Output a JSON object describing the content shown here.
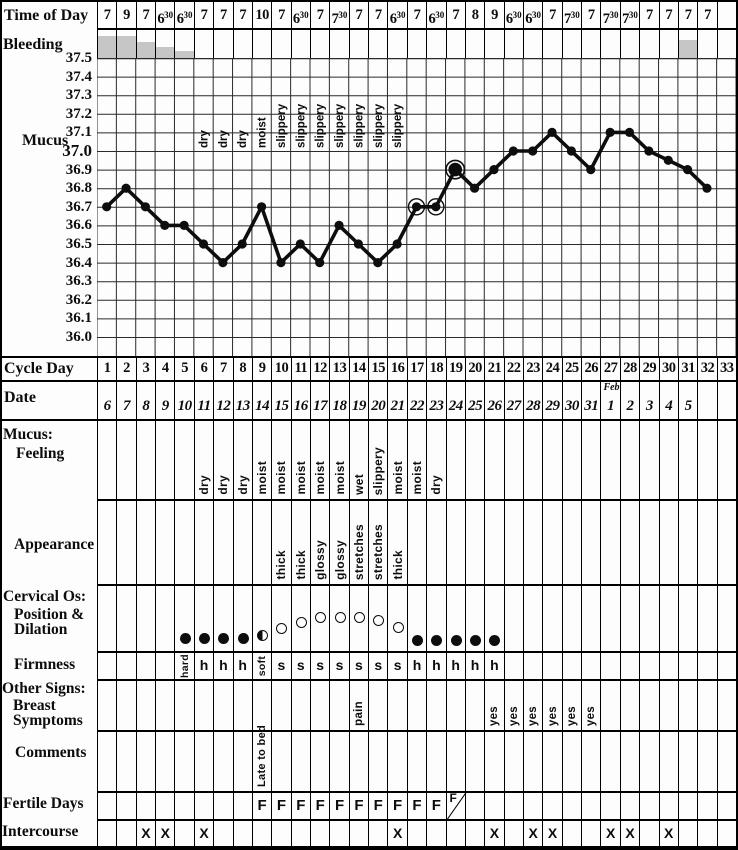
{
  "labels": {
    "time_of_day": "Time of Day",
    "bleeding": "Bleeding",
    "mucus_chart": "Mucus",
    "cycle_day": "Cycle Day",
    "date": "Date",
    "mucus_section": "Mucus:",
    "feeling": "Feeling",
    "appearance": "Appearance",
    "cervical_os": "Cervical Os:",
    "position_amp": "Position &",
    "dilation": "Dilation",
    "firmness": "Firmness",
    "other_signs": "Other Signs:",
    "breast": "Breast",
    "symptoms": "Symptoms",
    "comments": "Comments",
    "fertile_days": "Fertile Days",
    "intercourse": "Intercourse"
  },
  "columns": 33,
  "time_of_day": {
    "values": [
      "7",
      "9",
      "7",
      "6|30",
      "6|30",
      "7",
      "7",
      "7",
      "10",
      "7",
      "6|30",
      "7",
      "7|30",
      "7",
      "7",
      "6|30",
      "7",
      "6|30",
      "7",
      "8",
      "9",
      "6|30",
      "6|30",
      "7",
      "7|30",
      "7",
      "7|30",
      "7|30",
      "7",
      "7",
      "7",
      "7",
      ""
    ]
  },
  "bleeding": {
    "color": "#c6c6c6",
    "bars": [
      {
        "col": 1,
        "h": 22
      },
      {
        "col": 2,
        "h": 22
      },
      {
        "col": 3,
        "h": 16
      },
      {
        "col": 4,
        "h": 11
      },
      {
        "col": 5,
        "h": 7
      },
      {
        "col": 31,
        "h": 18
      }
    ]
  },
  "chart_data": {
    "type": "line",
    "x_label": "Cycle Day",
    "y_axis": {
      "min": 36.0,
      "max": 37.5,
      "step": 0.1,
      "bold_tick": "37.0"
    },
    "y_ticks": [
      "37.5",
      "37.4",
      "37.3",
      "37.2",
      "37.1",
      "37.0",
      "36.9",
      "36.8",
      "36.7",
      "36.6",
      "36.5",
      "36.4",
      "36.3",
      "36.2",
      "36.1",
      "36.0"
    ],
    "x": [
      1,
      2,
      3,
      4,
      5,
      6,
      7,
      8,
      9,
      10,
      11,
      12,
      13,
      14,
      15,
      16,
      17,
      18,
      19,
      20,
      21,
      22,
      23,
      24,
      25,
      26,
      27,
      28,
      29,
      30,
      31,
      32
    ],
    "temperatures": [
      36.7,
      36.8,
      36.7,
      36.6,
      36.6,
      36.5,
      36.4,
      36.5,
      36.7,
      36.4,
      36.5,
      36.4,
      36.6,
      36.5,
      36.4,
      36.5,
      36.7,
      36.7,
      36.9,
      36.8,
      36.9,
      37.0,
      37.0,
      37.1,
      37.0,
      36.9,
      37.1,
      37.1,
      37.0,
      36.95,
      36.9,
      36.8
    ],
    "circled_days": [
      17,
      18
    ],
    "peak_day": 19,
    "mucus_annotations": [
      {
        "day": 6,
        "text": "dry"
      },
      {
        "day": 7,
        "text": "dry"
      },
      {
        "day": 8,
        "text": "dry"
      },
      {
        "day": 9,
        "text": "moist"
      },
      {
        "day": 10,
        "text": "slippery"
      },
      {
        "day": 11,
        "text": "slippery"
      },
      {
        "day": 12,
        "text": "slippery"
      },
      {
        "day": 13,
        "text": "slippery"
      },
      {
        "day": 14,
        "text": "slippery"
      },
      {
        "day": 15,
        "text": "slippery"
      },
      {
        "day": 16,
        "text": "slippery"
      }
    ]
  },
  "cycle_day": {
    "values": [
      "1",
      "2",
      "3",
      "4",
      "5",
      "6",
      "7",
      "8",
      "9",
      "10",
      "11",
      "12",
      "13",
      "14",
      "15",
      "16",
      "17",
      "18",
      "19",
      "20",
      "21",
      "22",
      "23",
      "24",
      "25",
      "26",
      "27",
      "28",
      "29",
      "30",
      "31",
      "32",
      "33"
    ]
  },
  "date": {
    "values": [
      "6",
      "7",
      "8",
      "9",
      "10",
      "11",
      "12",
      "13",
      "14",
      "15",
      "16",
      "17",
      "18",
      "19",
      "20",
      "21",
      "22",
      "23",
      "24",
      "25",
      "26",
      "27",
      "28",
      "29",
      "30",
      "31",
      "1",
      "2",
      "3",
      "4",
      "5",
      "",
      ""
    ],
    "month_marker": {
      "col": 27,
      "text": "Feb"
    }
  },
  "feeling": {
    "entries": [
      {
        "col": 6,
        "text": "dry"
      },
      {
        "col": 7,
        "text": "dry"
      },
      {
        "col": 8,
        "text": "dry"
      },
      {
        "col": 9,
        "text": "moist"
      },
      {
        "col": 10,
        "text": "moist"
      },
      {
        "col": 11,
        "text": "moist"
      },
      {
        "col": 12,
        "text": "moist"
      },
      {
        "col": 13,
        "text": "moist"
      },
      {
        "col": 14,
        "text": "wet"
      },
      {
        "col": 15,
        "text": "slippery"
      },
      {
        "col": 16,
        "text": "moist"
      },
      {
        "col": 17,
        "text": "moist"
      },
      {
        "col": 18,
        "text": "dry"
      }
    ]
  },
  "appearance": {
    "entries": [
      {
        "col": 10,
        "text": "thick"
      },
      {
        "col": 11,
        "text": "thick"
      },
      {
        "col": 12,
        "text": "glossy"
      },
      {
        "col": 13,
        "text": "glossy"
      },
      {
        "col": 14,
        "text": "stretches"
      },
      {
        "col": 15,
        "text": "stretches"
      },
      {
        "col": 16,
        "text": "thick"
      }
    ]
  },
  "cervical_os": {
    "marks": [
      {
        "col": 5,
        "type": "filled",
        "dy": 53
      },
      {
        "col": 6,
        "type": "filled",
        "dy": 53
      },
      {
        "col": 7,
        "type": "filled",
        "dy": 53
      },
      {
        "col": 8,
        "type": "filled",
        "dy": 53
      },
      {
        "col": 9,
        "type": "half",
        "dy": 50
      },
      {
        "col": 10,
        "type": "open",
        "dy": 43
      },
      {
        "col": 11,
        "type": "open",
        "dy": 37
      },
      {
        "col": 12,
        "type": "open",
        "dy": 32
      },
      {
        "col": 13,
        "type": "open",
        "dy": 32
      },
      {
        "col": 14,
        "type": "open",
        "dy": 32
      },
      {
        "col": 15,
        "type": "open",
        "dy": 35
      },
      {
        "col": 16,
        "type": "open",
        "dy": 42
      },
      {
        "col": 17,
        "type": "filled",
        "dy": 55
      },
      {
        "col": 18,
        "type": "filled",
        "dy": 55
      },
      {
        "col": 19,
        "type": "filled",
        "dy": 55
      },
      {
        "col": 20,
        "type": "filled",
        "dy": 55
      },
      {
        "col": 21,
        "type": "filled",
        "dy": 55
      }
    ]
  },
  "firmness": {
    "entries": [
      {
        "col": 5,
        "text": "hard",
        "vertical": true
      },
      {
        "col": 6,
        "text": "h"
      },
      {
        "col": 7,
        "text": "h"
      },
      {
        "col": 8,
        "text": "h"
      },
      {
        "col": 9,
        "text": "soft",
        "vertical": true
      },
      {
        "col": 10,
        "text": "s"
      },
      {
        "col": 11,
        "text": "s"
      },
      {
        "col": 12,
        "text": "s"
      },
      {
        "col": 13,
        "text": "s"
      },
      {
        "col": 14,
        "text": "s"
      },
      {
        "col": 15,
        "text": "s"
      },
      {
        "col": 16,
        "text": "s"
      },
      {
        "col": 17,
        "text": "h"
      },
      {
        "col": 18,
        "text": "h"
      },
      {
        "col": 19,
        "text": "h"
      },
      {
        "col": 20,
        "text": "h"
      },
      {
        "col": 21,
        "text": "h"
      }
    ]
  },
  "breast_symptoms": {
    "entries": [
      {
        "col": 14,
        "text": "pain"
      },
      {
        "col": 21,
        "text": "yes"
      },
      {
        "col": 22,
        "text": "yes"
      },
      {
        "col": 23,
        "text": "yes"
      },
      {
        "col": 24,
        "text": "yes"
      },
      {
        "col": 25,
        "text": "yes"
      },
      {
        "col": 26,
        "text": "yes"
      }
    ]
  },
  "comments": {
    "entries": [
      {
        "col": 9,
        "text": "Late to bed"
      }
    ]
  },
  "fertile_days": {
    "mark": "F",
    "marked_cols": [
      9,
      10,
      11,
      12,
      13,
      14,
      15,
      16,
      17,
      18
    ],
    "end_marker_col": 19
  },
  "intercourse": {
    "mark": "X",
    "marked_cols": [
      3,
      4,
      6,
      16,
      21,
      23,
      24,
      27,
      28,
      30
    ]
  },
  "colors": {
    "ink": "#0d0d0d",
    "grid_line": "#2a2a2a",
    "bleeding_fill": "#c6c6c6",
    "background": "#fdfdfd"
  }
}
